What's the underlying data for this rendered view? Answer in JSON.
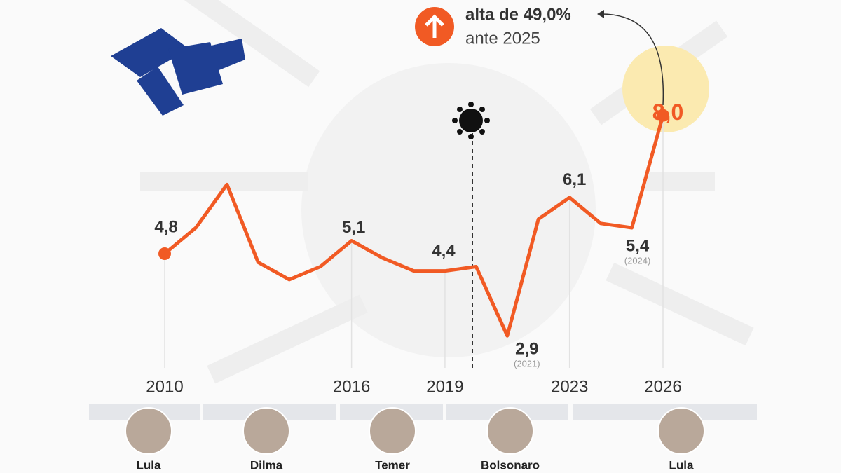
{
  "chart_data": {
    "type": "line",
    "x": [
      2010,
      2011,
      2012,
      2013,
      2014,
      2015,
      2016,
      2017,
      2018,
      2019,
      2020,
      2021,
      2022,
      2023,
      2024,
      2025,
      2026
    ],
    "values": [
      4.8,
      5.4,
      6.4,
      4.6,
      4.2,
      4.5,
      5.1,
      4.7,
      4.4,
      4.4,
      4.5,
      2.9,
      5.6,
      6.1,
      5.5,
      5.4,
      8.0
    ],
    "value_labels": [
      "4,8",
      null,
      null,
      null,
      null,
      null,
      "5,1",
      null,
      null,
      "4,4",
      null,
      "2,9",
      null,
      "6,1",
      null,
      "5,4",
      "8,0"
    ],
    "color": "#f15a24",
    "xlim": [
      2010,
      2026
    ],
    "xticks": [
      2010,
      2016,
      2019,
      2023,
      2026
    ],
    "ylim": [
      0,
      9
    ],
    "notes": [
      "(2021)",
      "(2024)"
    ],
    "annotation": {
      "headline": "alta de 49,0%",
      "text": "ante 2025"
    },
    "presidents": [
      "Lula",
      "Dilma",
      "Temer",
      "Bolsonaro",
      "Lula"
    ]
  }
}
